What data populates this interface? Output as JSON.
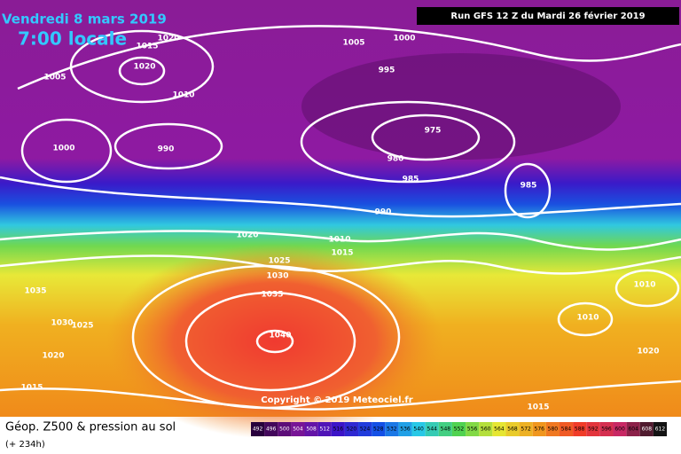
{
  "title": "Vendredi 8 mars 2019",
  "subtitle": "7:00 locale",
  "run": "Run GFS 12 Z du Mardi 26 février 2019",
  "copyright": "Copyright © 2019 Meteociel.fr",
  "footer": {
    "title": "Géop. Z500 & pression au sol",
    "lead": "(+ 234h)"
  },
  "scale": [
    492,
    496,
    500,
    504,
    508,
    512,
    516,
    520,
    524,
    528,
    532,
    536,
    540,
    544,
    548,
    552,
    556,
    560,
    564,
    568,
    572,
    576,
    580,
    584,
    588,
    592,
    596,
    600,
    604,
    608,
    612
  ],
  "isobar_labels": [
    1020,
    1015,
    1020,
    1005,
    1010,
    1000,
    990,
    1005,
    1000,
    995,
    975,
    980,
    985,
    985,
    990,
    1020,
    1010,
    1015,
    1025,
    1030,
    1035,
    1035,
    1040,
    1030,
    1025,
    1020,
    1015,
    1010,
    1010,
    1020,
    1015
  ]
}
